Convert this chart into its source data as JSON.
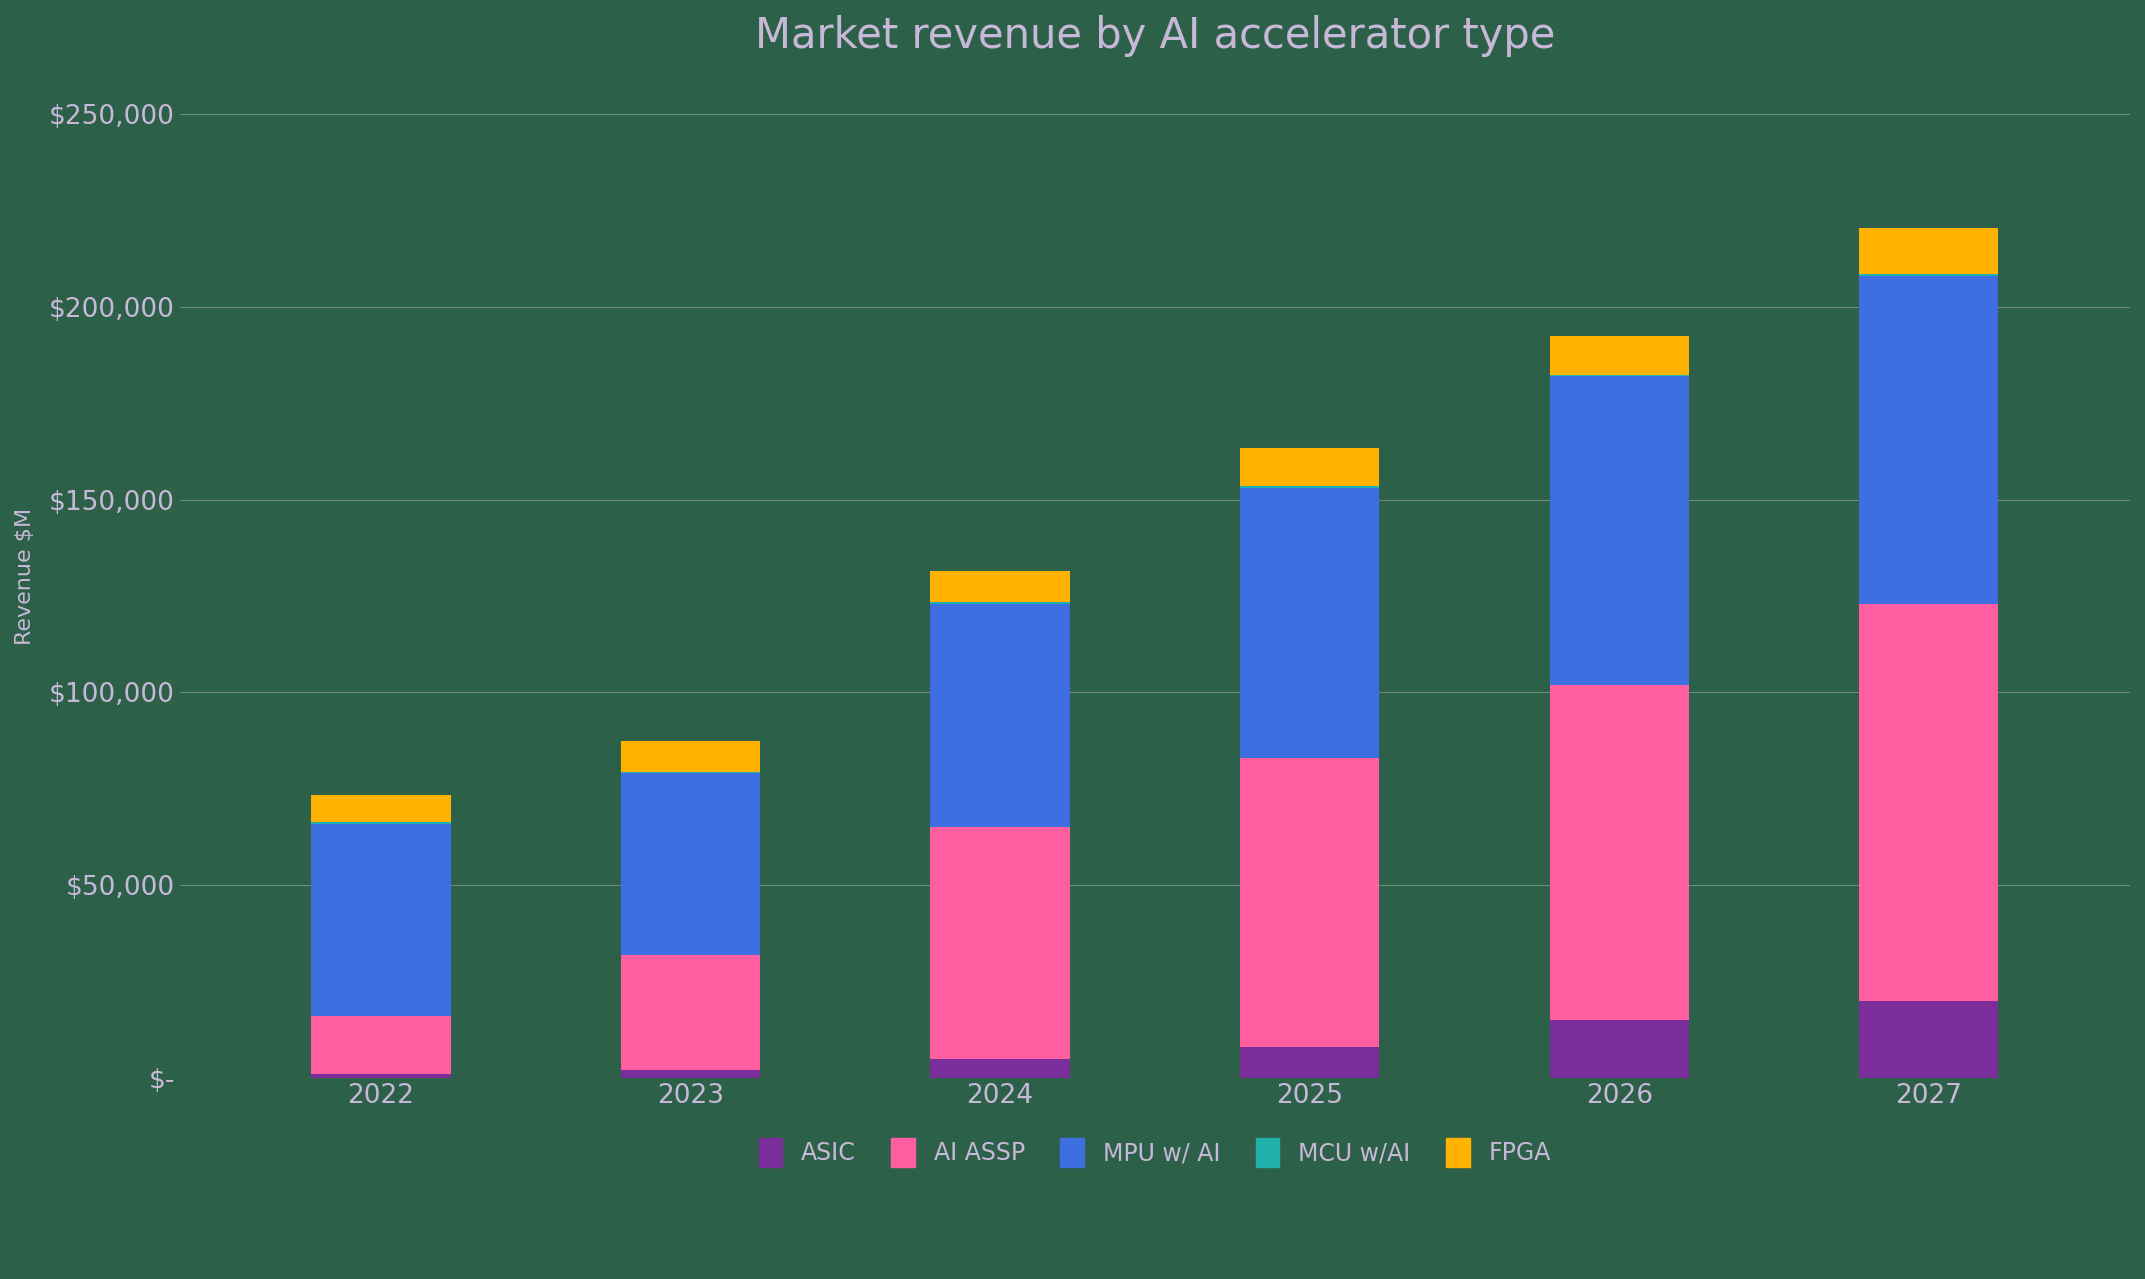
{
  "title": "Market revenue by AI accelerator type",
  "years": [
    "2022",
    "2023",
    "2024",
    "2025",
    "2026",
    "2027"
  ],
  "series": {
    "ASIC": [
      1000,
      2000,
      5000,
      8000,
      15000,
      20000
    ],
    "AI ASSP": [
      15000,
      30000,
      60000,
      75000,
      87000,
      103000
    ],
    "MPU w/ AI": [
      50000,
      47000,
      58000,
      70000,
      80000,
      85000
    ],
    "MCU w/AI": [
      500,
      500,
      500,
      500,
      500,
      500
    ],
    "FPGA": [
      7000,
      8000,
      8000,
      10000,
      10000,
      12000
    ]
  },
  "colors": {
    "ASIC": "#7B2D9B",
    "AI ASSP": "#FF5FA0",
    "MPU w/ AI": "#3D6FE0",
    "MCU w/AI": "#20B2AA",
    "FPGA": "#FFB300"
  },
  "ylabel": "Revenue $M",
  "ylim": [
    0,
    260000
  ],
  "yticks": [
    0,
    50000,
    100000,
    150000,
    200000,
    250000
  ],
  "ytick_labels": [
    "$-",
    "$50,000",
    "$100,000",
    "$150,000",
    "$200,000",
    "$250,000"
  ],
  "background_color": "#2D6048",
  "text_color": "#C8B8D8",
  "grid_color": "#C0C0C0",
  "title_fontsize": 30,
  "axis_label_fontsize": 16,
  "tick_fontsize": 19,
  "legend_fontsize": 17,
  "bar_width": 0.45
}
